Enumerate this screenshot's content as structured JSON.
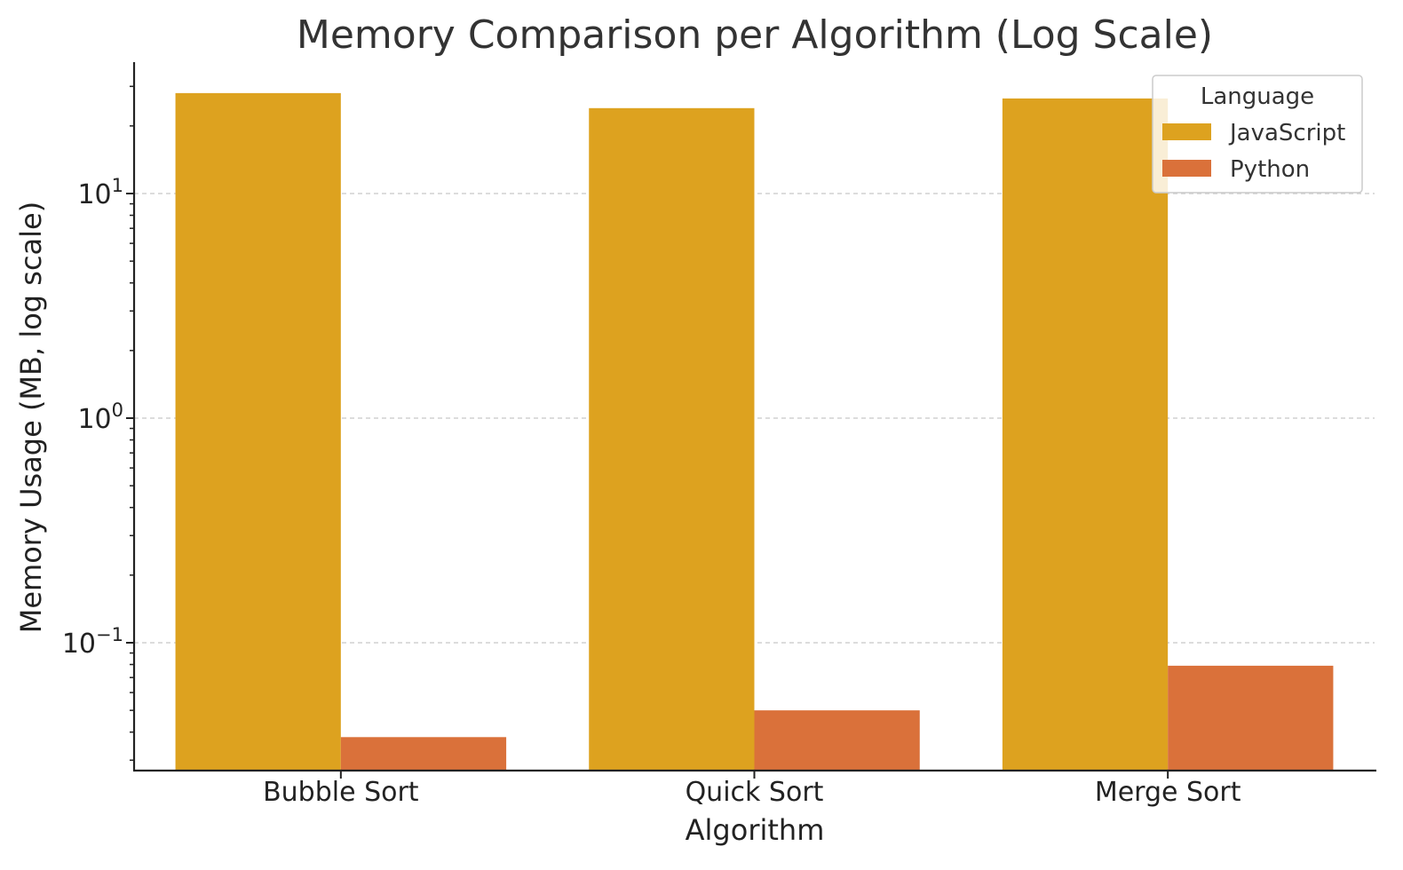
{
  "chart_data": {
    "type": "bar",
    "title": "Memory Comparison per Algorithm (Log Scale)",
    "xlabel": "Algorithm",
    "ylabel": "Memory Usage (MB, log scale)",
    "yscale": "log",
    "ylim": [
      0.027,
      31
    ],
    "y_ticks": [
      {
        "value": 10,
        "base": "10",
        "exp": "1"
      },
      {
        "value": 1,
        "base": "10",
        "exp": "0"
      },
      {
        "value": 0.1,
        "base": "10",
        "exp": "−1"
      }
    ],
    "grid": "horizontal dashed at major ticks",
    "categories": [
      "Bubble Sort",
      "Quick Sort",
      "Merge Sort"
    ],
    "series": [
      {
        "name": "JavaScript",
        "color": "#DDA21F",
        "values": [
          28,
          24,
          26.5
        ]
      },
      {
        "name": "Python",
        "color": "#DA713A",
        "values": [
          0.038,
          0.05,
          0.079
        ]
      }
    ],
    "legend": {
      "title": "Language",
      "placement": "top-right"
    }
  }
}
